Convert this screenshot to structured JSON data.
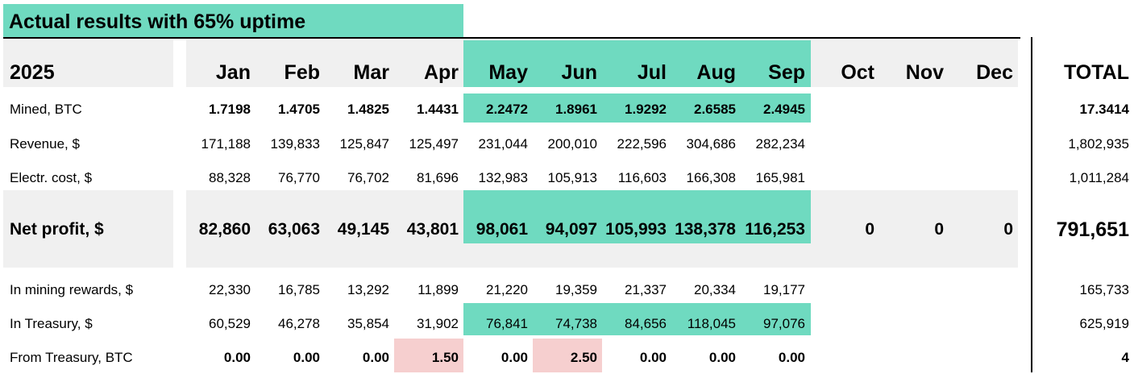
{
  "banner": "Actual results with 65% uptime",
  "year": "2025",
  "months": [
    "Jan",
    "Feb",
    "Mar",
    "Apr",
    "May",
    "Jun",
    "Jul",
    "Aug",
    "Sep",
    "Oct",
    "Nov",
    "Dec"
  ],
  "total_label": "TOTAL",
  "rows": [
    {
      "label": "Mined, BTC",
      "style": "bold",
      "values": [
        "1.7198",
        "1.4705",
        "1.4825",
        "1.4431",
        "2.2472",
        "1.8961",
        "1.9292",
        "2.6585",
        "2.4945",
        "",
        "",
        ""
      ],
      "total": "17.3414"
    },
    {
      "label": "Revenue, $",
      "style": "norm",
      "values": [
        "171,188",
        "139,833",
        "125,847",
        "125,497",
        "231,044",
        "200,010",
        "222,596",
        "304,686",
        "282,234",
        "",
        "",
        ""
      ],
      "total": "1,802,935"
    },
    {
      "label": "Electr. cost, $",
      "style": "norm",
      "values": [
        "88,328",
        "76,770",
        "76,702",
        "81,696",
        "132,983",
        "105,913",
        "116,603",
        "166,308",
        "165,981",
        "",
        "",
        ""
      ],
      "total": "1,011,284"
    },
    {
      "label": "Net profit, $",
      "style": "big",
      "values": [
        "82,860",
        "63,063",
        "49,145",
        "43,801",
        "98,061",
        "94,097",
        "105,993",
        "138,378",
        "116,253",
        "0",
        "0",
        "0"
      ],
      "total": "791,651"
    },
    {
      "label": "In mining rewards, $",
      "style": "norm",
      "values": [
        "22,330",
        "16,785",
        "13,292",
        "11,899",
        "21,220",
        "19,359",
        "21,337",
        "20,334",
        "19,177",
        "",
        "",
        ""
      ],
      "total": "165,733"
    },
    {
      "label": "In Treasury, $",
      "style": "norm",
      "values": [
        "60,529",
        "46,278",
        "35,854",
        "31,902",
        "76,841",
        "74,738",
        "84,656",
        "118,045",
        "97,076",
        "",
        "",
        ""
      ],
      "total": "625,919"
    },
    {
      "label": "From Treasury, BTC",
      "style": "bold",
      "values": [
        "0.00",
        "0.00",
        "0.00",
        "1.50",
        "0.00",
        "2.50",
        "0.00",
        "0.00",
        "0.00",
        "",
        "",
        ""
      ],
      "total": "4"
    }
  ],
  "colors": {
    "highlight_teal": "#6fdac0",
    "highlight_pink": "#f6cfcf",
    "header_grey": "#f0f0f0"
  }
}
